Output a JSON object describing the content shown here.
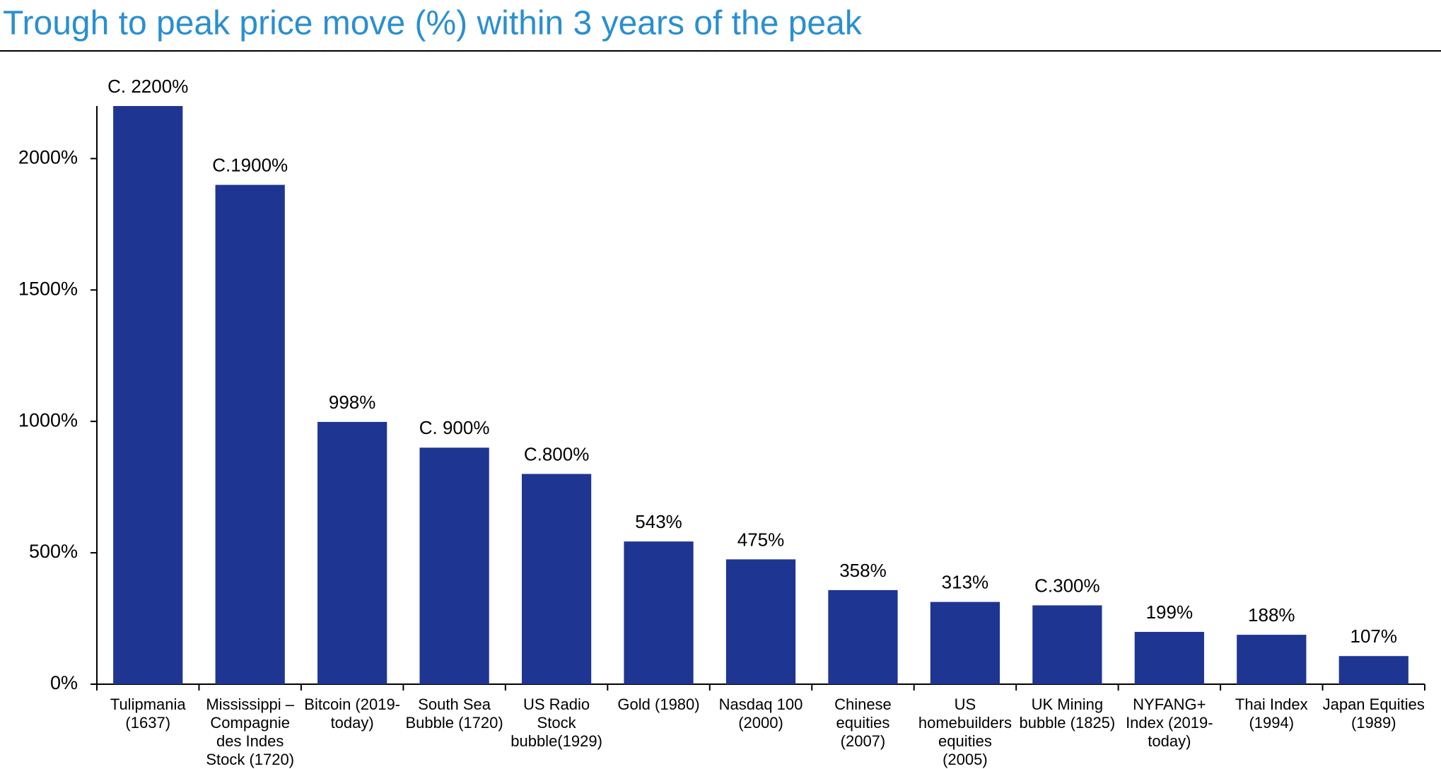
{
  "chart_data": {
    "type": "bar",
    "title": "Trough to peak price move (%) within 3 years of the peak",
    "categories": [
      "Tulipmania (1637)",
      "Mississippi – Compagnie des Indes Stock (1720)",
      "Bitcoin (2019-today)",
      "South Sea Bubble (1720)",
      "US Radio Stock bubble(1929)",
      "Gold (1980)",
      "Nasdaq 100 (2000)",
      "Chinese equities (2007)",
      "US homebuilders equities (2005)",
      "UK Mining bubble (1825)",
      "NYFANG+ Index (2019-today)",
      "Thai Index (1994)",
      "Japan Equities (1989)"
    ],
    "values": [
      2200,
      1900,
      998,
      900,
      800,
      543,
      475,
      358,
      313,
      300,
      199,
      188,
      107
    ],
    "value_labels": [
      "C. 2200%",
      "C.1900%",
      "998%",
      "C. 900%",
      "C.800%",
      "543%",
      "475%",
      "358%",
      "313%",
      "C.300%",
      "199%",
      "188%",
      "107%"
    ],
    "color": "#1f3592",
    "ylim": [
      0,
      2200
    ],
    "yticks": [
      {
        "value": 0,
        "label": "0%"
      },
      {
        "value": 500,
        "label": "500%"
      },
      {
        "value": 1000,
        "label": "1000%"
      },
      {
        "value": 1500,
        "label": "1500%"
      },
      {
        "value": 2000,
        "label": "2000%"
      }
    ],
    "grid": false
  }
}
